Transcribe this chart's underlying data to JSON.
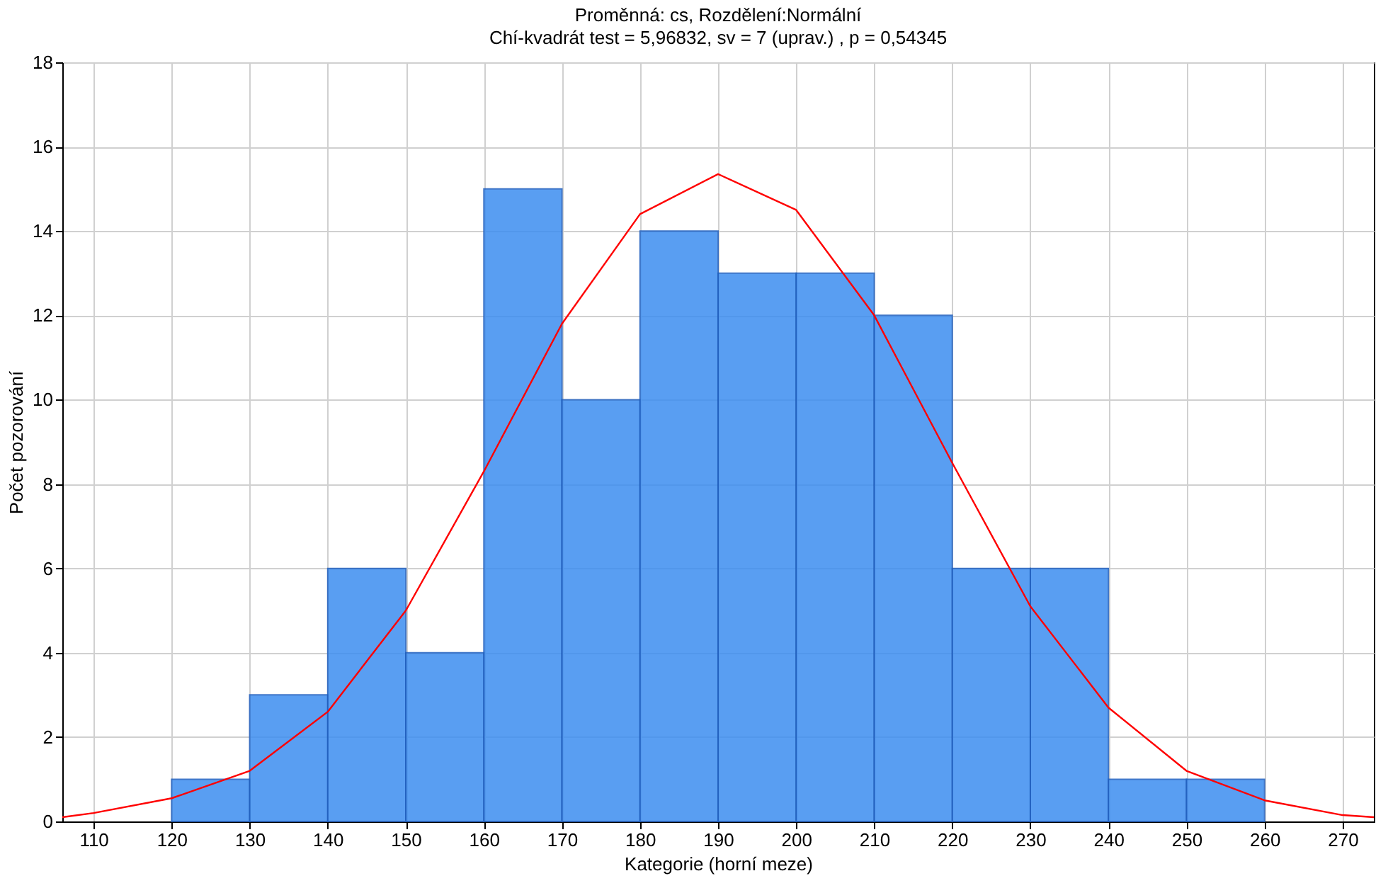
{
  "chart_data": {
    "type": "histogram",
    "title": "Proměnná: cs, Rozdělení:Normální",
    "subtitle": "Chí-kvadrát test = 5,96832, sv = 7 (uprav.) , p = 0,54345",
    "xlabel": "Kategorie (horní meze)",
    "ylabel": "Počet pozorování",
    "bins": [
      120,
      130,
      140,
      150,
      160,
      170,
      180,
      190,
      200,
      210,
      220,
      230,
      240,
      250,
      260
    ],
    "values": [
      1,
      3,
      6,
      4,
      15,
      10,
      14,
      13,
      13,
      12,
      6,
      6,
      1,
      1
    ],
    "color": "#3d8ef0",
    "series": [
      {
        "type": "line",
        "color": "#ff0000",
        "x": [
          106,
          110,
          120,
          130,
          140,
          150,
          160,
          170,
          180,
          190,
          200,
          210,
          220,
          230,
          240,
          250,
          260,
          270,
          274
        ],
        "values": [
          0.1,
          0.2,
          0.55,
          1.2,
          2.6,
          5,
          8.3,
          11.8,
          14.4,
          15.35,
          14.5,
          12,
          8.5,
          5.1,
          2.7,
          1.2,
          0.5,
          0.15,
          0.1
        ]
      }
    ],
    "xlim": [
      106,
      274
    ],
    "xticks": [
      110,
      120,
      130,
      140,
      150,
      160,
      170,
      180,
      190,
      200,
      210,
      220,
      230,
      240,
      250,
      260,
      270
    ],
    "ylim": [
      0,
      18
    ],
    "yticks": [
      0,
      2,
      4,
      6,
      8,
      10,
      12,
      14,
      16,
      18
    ],
    "grid": true
  }
}
